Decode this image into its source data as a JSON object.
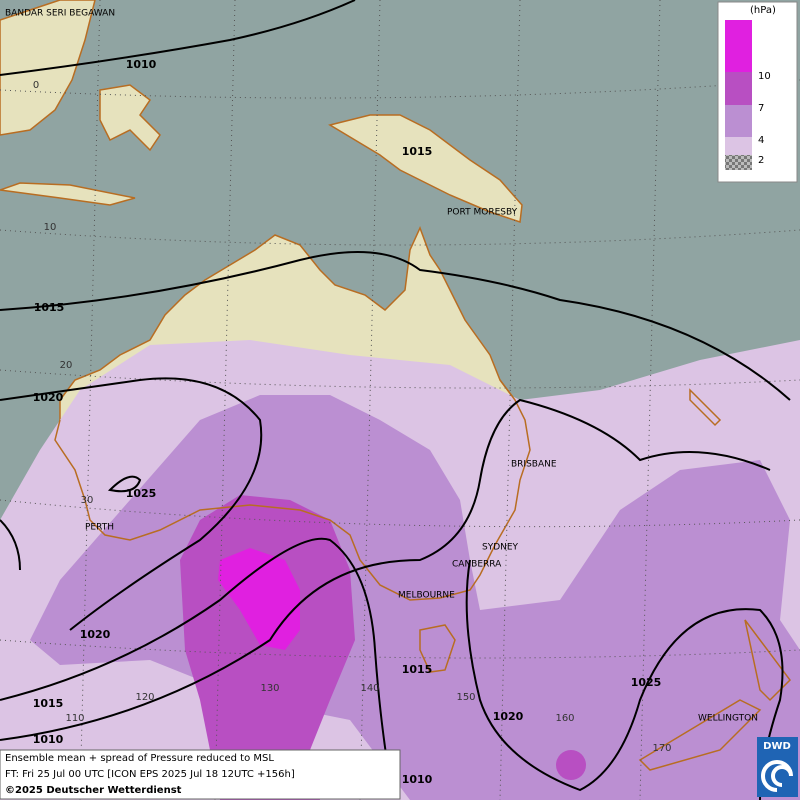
{
  "legend": {
    "unit": "(hPa)",
    "levels": [
      "10",
      "7",
      "4",
      "2"
    ]
  },
  "cities": [
    "BANDAR SERI BEGAWAN",
    "PORT MORESBY",
    "BRISBANE",
    "SYDNEY",
    "CANBERRA",
    "MELBOURNE",
    "PERTH",
    "WELLINGTON"
  ],
  "isobar_labels": [
    "1010",
    "1015",
    "1020",
    "1025",
    "1015",
    "1020",
    "1015",
    "1010",
    "1015",
    "1020",
    "1025",
    "1010"
  ],
  "latitude_labels": [
    "0",
    "10",
    "20",
    "30"
  ],
  "longitude_labels": [
    "110",
    "120",
    "130",
    "140",
    "150",
    "160",
    "170"
  ],
  "footer": {
    "title": "Ensemble mean + spread of Pressure reduced to MSL",
    "forecast": "FT: Fri 25 Jul 00 UTC [ICON EPS 2025 Jul 18 12UTC +156h]",
    "copyright": "©2025 Deutscher Wetterdienst"
  },
  "logo": "DWD"
}
